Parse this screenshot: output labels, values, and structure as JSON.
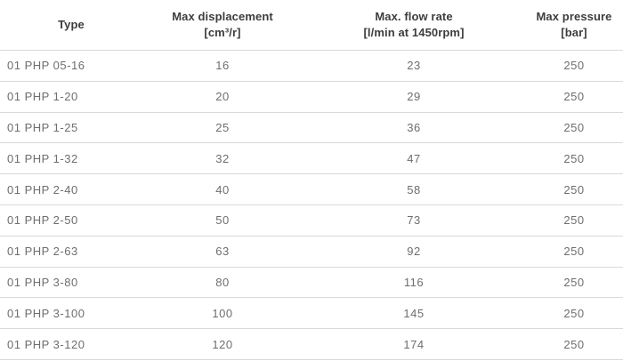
{
  "table": {
    "columns": [
      {
        "id": "type",
        "label": "Type",
        "unit": ""
      },
      {
        "id": "displacement",
        "label": "Max displacement",
        "unit": "[cm³/r]"
      },
      {
        "id": "flow",
        "label": "Max. flow rate",
        "unit": "[l/min at 1450rpm]"
      },
      {
        "id": "pressure",
        "label": "Max pressure",
        "unit": "[bar]"
      }
    ],
    "rows": [
      {
        "type": "01 PHP 05-16",
        "displacement": "16",
        "flow": "23",
        "pressure": "250"
      },
      {
        "type": "01 PHP 1-20",
        "displacement": "20",
        "flow": "29",
        "pressure": "250"
      },
      {
        "type": "01 PHP 1-25",
        "displacement": "25",
        "flow": "36",
        "pressure": "250"
      },
      {
        "type": "01 PHP 1-32",
        "displacement": "32",
        "flow": "47",
        "pressure": "250"
      },
      {
        "type": "01 PHP 2-40",
        "displacement": "40",
        "flow": "58",
        "pressure": "250"
      },
      {
        "type": "01 PHP 2-50",
        "displacement": "50",
        "flow": "73",
        "pressure": "250"
      },
      {
        "type": "01 PHP 2-63",
        "displacement": "63",
        "flow": "92",
        "pressure": "250"
      },
      {
        "type": "01 PHP 3-80",
        "displacement": "80",
        "flow": "116",
        "pressure": "250"
      },
      {
        "type": "01 PHP 3-100",
        "displacement": "100",
        "flow": "145",
        "pressure": "250"
      },
      {
        "type": "01 PHP 3-120",
        "displacement": "120",
        "flow": "174",
        "pressure": "250"
      }
    ]
  },
  "colors": {
    "background": "#ffffff",
    "header_text": "#3d3d3d",
    "body_text": "#6e6e6e",
    "border": "#d9d9d9"
  }
}
